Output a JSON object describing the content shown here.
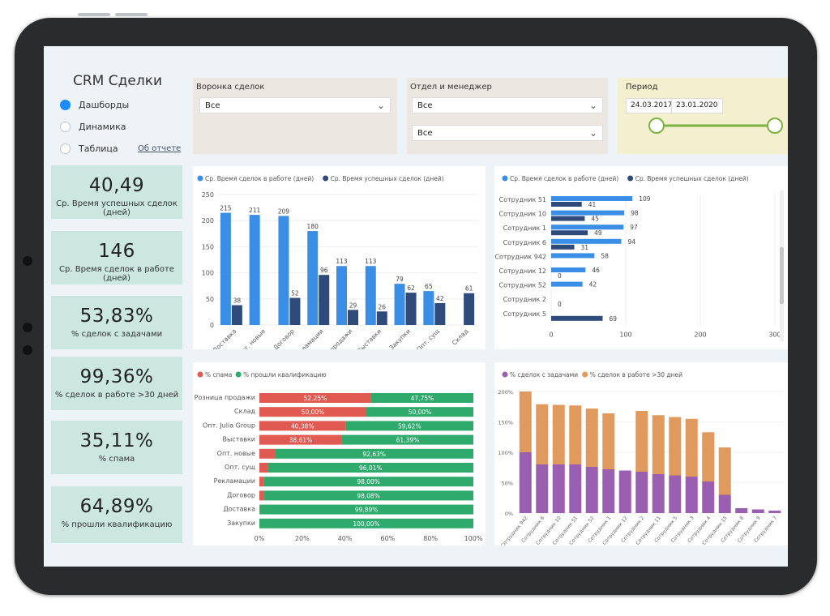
{
  "app": {
    "title": "CRM Сделки",
    "nav": [
      {
        "label": "Дашборды",
        "selected": true
      },
      {
        "label": "Динамика",
        "selected": false
      },
      {
        "label": "Таблица",
        "selected": false
      }
    ],
    "about_link": "Об отчете"
  },
  "filters": {
    "funnel": {
      "label": "Воронка сделок",
      "value": "Все"
    },
    "dept": {
      "label": "Отдел и менеджер",
      "value1": "Все",
      "value2": "Все"
    },
    "period": {
      "label": "Период",
      "start": "24.03.2017",
      "end": "23.01.2020"
    }
  },
  "kpis": [
    {
      "value": "40,49",
      "label": "Ср. Время успешных сделок (дней)"
    },
    {
      "value": "146",
      "label": "Ср. Время сделок в работе (дней)"
    },
    {
      "value": "53,83%",
      "label": "% сделок с задачами"
    },
    {
      "value": "99,36%",
      "label": "% сделок в работе >30 дней"
    },
    {
      "value": "35,11%",
      "label": "% спама"
    },
    {
      "value": "64,89%",
      "label": "% прошли квалификацию"
    }
  ],
  "colors": {
    "blue": "#3a8ee6",
    "navy": "#2f4b7c",
    "red": "#e05a52",
    "green": "#2eaa6c",
    "purple": "#9b5fb1",
    "orange": "#e19a5e",
    "accent": "#1a8cff",
    "slider": "#7cb342"
  },
  "chart_data": [
    {
      "type": "bar",
      "legend": [
        "Ср. Время сделок в работе (дней)",
        "Ср. Время успешных сделок (дней)"
      ],
      "categories": [
        "Доставка",
        "Опт. новые",
        "Договор",
        "Рекламации",
        "Розница продажи",
        "Выставки",
        "Закупки",
        "Опт. сущ",
        "Склад"
      ],
      "series": [
        {
          "name": "Ср. Время сделок в работе (дней)",
          "values": [
            215,
            211,
            209,
            180,
            113,
            113,
            79,
            65,
            null
          ]
        },
        {
          "name": "Ср. Время успешных сделок (дней)",
          "values": [
            38,
            null,
            52,
            96,
            29,
            26,
            62,
            42,
            61
          ]
        }
      ],
      "ylim": [
        0,
        250
      ],
      "yticks": [
        "0",
        "50",
        "100",
        "150",
        "200",
        "250"
      ]
    },
    {
      "type": "bar",
      "orientation": "horizontal",
      "legend": [
        "Ср. Время сделок в работе (дней)",
        "Ср. Время успешных сделок (дней)"
      ],
      "categories": [
        "Сотрудник 51",
        "Сотрудник 10",
        "Сотрудник 1",
        "Сотрудник 6",
        "Сотрудник 942",
        "Сотрудник 12",
        "Сотрудник 52",
        "Сотрудник 2",
        "Сотрудник 5"
      ],
      "series": [
        {
          "name": "Ср. Время сделок в работе (дней)",
          "values": [
            109,
            98,
            97,
            94,
            58,
            46,
            42,
            null,
            null
          ]
        },
        {
          "name": "Ср. Время успешных сделок (дней)",
          "values": [
            41,
            45,
            49,
            31,
            null,
            0,
            null,
            0,
            69
          ]
        }
      ],
      "xlim": [
        0,
        300
      ],
      "xticks": [
        "0",
        "100",
        "200",
        "300"
      ]
    },
    {
      "type": "bar",
      "orientation": "horizontal",
      "stacked": true,
      "legend": [
        "% спама",
        "% прошли квалификацию"
      ],
      "categories": [
        "Розница продажи",
        "Склад",
        "Опт. Julia Group",
        "Выставки",
        "Опт. новые",
        "Опт. сущ",
        "Рекламации",
        "Договор",
        "Доставка",
        "Закупки"
      ],
      "series": [
        {
          "name": "% спама",
          "values": [
            52.25,
            50.0,
            40.38,
            38.61,
            7.37,
            3.99,
            2.0,
            1.92,
            0.11,
            0
          ],
          "labels": [
            "52,25%",
            "50,00%",
            "40,38%",
            "38,61%",
            "",
            "",
            "",
            "",
            "",
            ""
          ]
        },
        {
          "name": "% прошли квалификацию",
          "values": [
            47.75,
            50.0,
            59.62,
            61.39,
            92.63,
            96.01,
            98.0,
            98.08,
            99.89,
            100.0
          ],
          "labels": [
            "47,75%",
            "50,00%",
            "59,62%",
            "61,39%",
            "92,63%",
            "96,01%",
            "98,00%",
            "98,08%",
            "99,89%",
            "100,00%"
          ]
        }
      ],
      "xlim": [
        0,
        100
      ],
      "xticks": [
        "0%",
        "20%",
        "40%",
        "60%",
        "80%",
        "100%"
      ]
    },
    {
      "type": "bar",
      "stacked": true,
      "legend": [
        "% сделок с задачами",
        "% сделок в работе >30 дней"
      ],
      "categories": [
        "Сотрудник 942",
        "Сотрудник 6",
        "Сотрудник 10",
        "Сотрудник 51",
        "Сотрудник 52",
        "Сотрудник 1",
        "Сотрудник 12",
        "Сотрудник 2",
        "Сотрудник 11",
        "Сотрудник 5",
        "Сотрудник 3",
        "Сотрудник 4",
        "Сотрудник 15",
        "Сотрудник 8",
        "Сотрудник 9",
        "Сотрудник 7"
      ],
      "series": [
        {
          "name": "% сделок с задачами",
          "values": [
            100,
            80,
            80,
            80,
            76,
            72,
            70,
            68,
            64,
            62,
            60,
            52,
            30,
            8,
            6,
            4
          ]
        },
        {
          "name": "% сделок в работе >30 дней",
          "values": [
            100,
            99,
            98,
            97,
            96,
            92,
            0,
            100,
            97,
            96,
            95,
            81,
            78,
            0,
            0,
            0
          ]
        }
      ],
      "ylim": [
        0,
        200
      ],
      "yticks": [
        "0%",
        "50%",
        "100%",
        "150%",
        "200%"
      ]
    }
  ]
}
